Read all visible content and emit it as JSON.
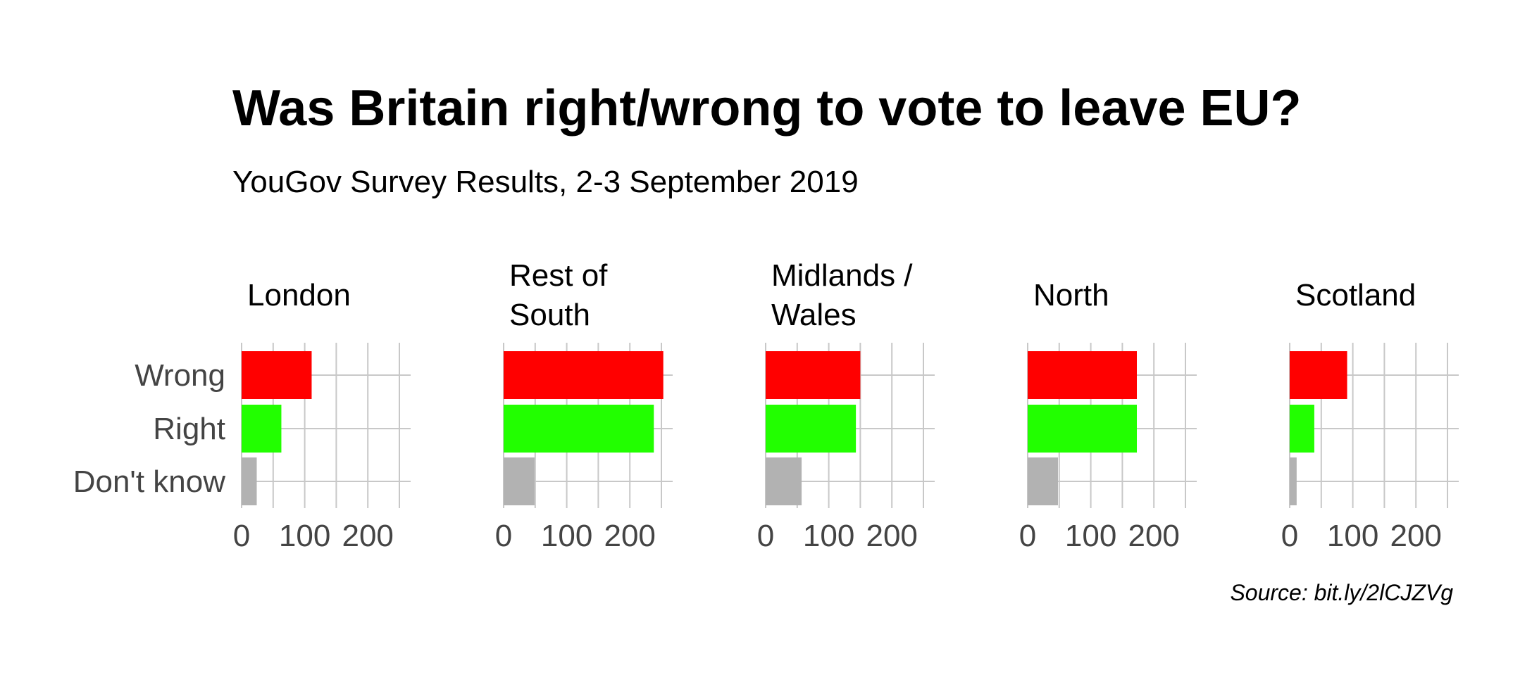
{
  "chart_data": {
    "type": "bar",
    "orientation": "horizontal",
    "title": "Was Britain right/wrong to vote to leave EU?",
    "subtitle": "YouGov Survey Results, 2-3 September 2019",
    "source": "Source: bit.ly/2lCJZVg",
    "categories": [
      "Wrong",
      "Right",
      "Don't know"
    ],
    "colors": {
      "Wrong": "#ff0000",
      "Right": "#22ff00",
      "Don't know": "#b2b2b2"
    },
    "xlim": [
      0,
      250
    ],
    "xticks": [
      0,
      100,
      200
    ],
    "grid": true,
    "panels": [
      {
        "name": [
          "London"
        ],
        "values": [
          111,
          63,
          24
        ]
      },
      {
        "name": [
          "Rest of",
          "South"
        ],
        "values": [
          253,
          238,
          49
        ]
      },
      {
        "name": [
          "Midlands /",
          "Wales"
        ],
        "values": [
          150,
          143,
          57
        ]
      },
      {
        "name": [
          "North"
        ],
        "values": [
          173,
          173,
          48
        ]
      },
      {
        "name": [
          "Scotland"
        ],
        "values": [
          91,
          39,
          11
        ]
      }
    ]
  }
}
